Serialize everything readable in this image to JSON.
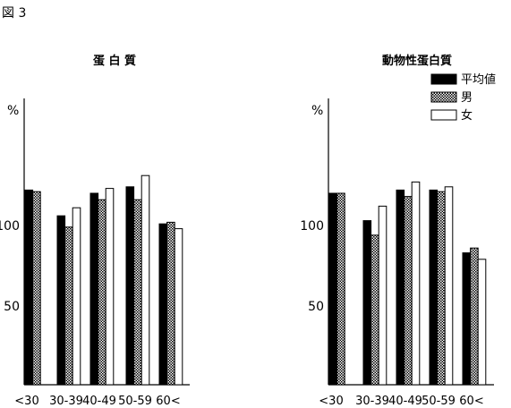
{
  "figure_label": "図 3",
  "legend": [
    {
      "label": "平均値",
      "pattern": "solid"
    },
    {
      "label": "男",
      "pattern": "checker"
    },
    {
      "label": "女",
      "pattern": "white"
    }
  ],
  "colors": {
    "ink": "#000000",
    "paper": "#ffffff"
  },
  "chart_data": [
    {
      "type": "bar",
      "title": "蛋 白 質",
      "ylabel": "%",
      "yticks": [
        50,
        100
      ],
      "ylim": [
        0,
        180
      ],
      "categories": [
        "<30",
        "30-39",
        "40-49",
        "50-59",
        "60<"
      ],
      "series": [
        {
          "name": "平均値",
          "values": [
            122,
            106,
            120,
            124,
            101
          ]
        },
        {
          "name": "男",
          "values": [
            121,
            99,
            116,
            116,
            102
          ]
        },
        {
          "name": "女",
          "values": [
            null,
            111,
            123,
            131,
            98
          ]
        }
      ]
    },
    {
      "type": "bar",
      "title": "動物性蛋白質",
      "ylabel": "%",
      "yticks": [
        50,
        100
      ],
      "ylim": [
        0,
        180
      ],
      "categories": [
        "<30",
        "30-39",
        "40-49",
        "50-59",
        "60<"
      ],
      "series": [
        {
          "name": "平均値",
          "values": [
            120,
            103,
            122,
            122,
            83
          ]
        },
        {
          "name": "男",
          "values": [
            120,
            94,
            118,
            121,
            86
          ]
        },
        {
          "name": "女",
          "values": [
            null,
            112,
            127,
            124,
            79
          ]
        }
      ]
    }
  ]
}
